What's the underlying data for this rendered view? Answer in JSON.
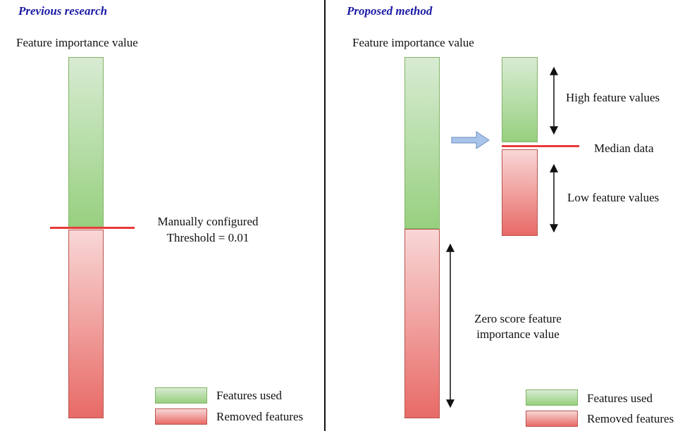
{
  "left_panel": {
    "title": "Previous research",
    "axis_label": "Feature importance value",
    "threshold_line1": "Manually configured",
    "threshold_line2": "Threshold = 0.01",
    "legend": {
      "used": "Features used",
      "removed": "Removed features"
    }
  },
  "right_panel": {
    "title": "Proposed method",
    "axis_label": "Feature importance value",
    "high_label": "High feature values",
    "median_label": "Median data",
    "low_label": "Low feature values",
    "zero_line1": "Zero score feature",
    "zero_line2": "importance value",
    "legend": {
      "used": "Features used",
      "removed": "Removed features"
    }
  },
  "colors": {
    "title": "#1a1aa6",
    "threshold_line": "#e83a3a",
    "arrow_fill": "#a9c4eb"
  }
}
